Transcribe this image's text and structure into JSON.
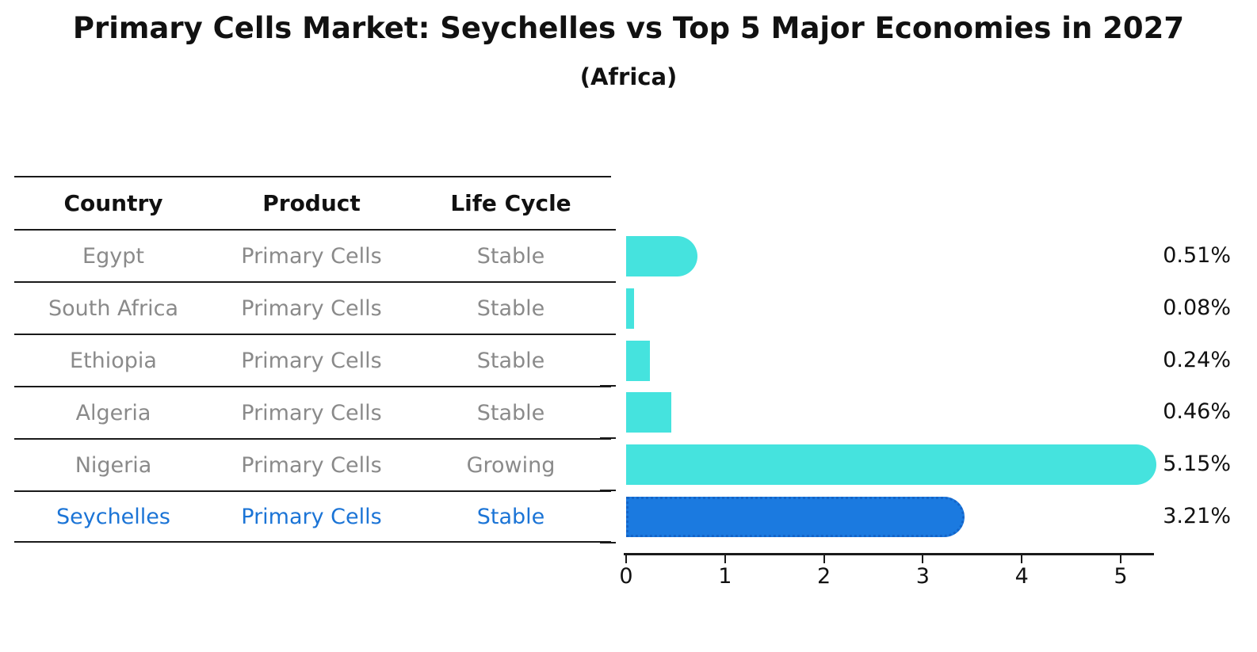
{
  "title": "Primary Cells Market: Seychelles vs Top 5 Major Economies in 2027",
  "subtitle": "(Africa)",
  "table": {
    "headers": {
      "country": "Country",
      "product": "Product",
      "life_cycle": "Life Cycle"
    },
    "rows": [
      {
        "country": "Egypt",
        "product": "Primary Cells",
        "life_cycle": "Stable",
        "highlighted": false
      },
      {
        "country": "South Africa",
        "product": "Primary Cells",
        "life_cycle": "Stable",
        "highlighted": false
      },
      {
        "country": "Ethiopia",
        "product": "Primary Cells",
        "life_cycle": "Stable",
        "highlighted": false
      },
      {
        "country": "Algeria",
        "product": "Primary Cells",
        "life_cycle": "Stable",
        "highlighted": false
      },
      {
        "country": "Nigeria",
        "product": "Primary Cells",
        "life_cycle": "Growing",
        "highlighted": false
      },
      {
        "country": "Seychelles",
        "product": "Primary Cells",
        "life_cycle": "Stable",
        "highlighted": true
      }
    ]
  },
  "chart_data": {
    "type": "bar",
    "orientation": "horizontal",
    "title": "Primary Cells Market: Seychelles vs Top 5 Major Economies in 2027",
    "subtitle": "(Africa)",
    "categories": [
      "Egypt",
      "South Africa",
      "Ethiopia",
      "Algeria",
      "Nigeria",
      "Seychelles"
    ],
    "values": [
      0.51,
      0.08,
      0.24,
      0.46,
      5.15,
      3.21
    ],
    "value_labels": [
      "0.51%",
      "0.08%",
      "0.24%",
      "0.46%",
      "5.15%",
      "3.21%"
    ],
    "xlabel": "",
    "ylabel": "",
    "xlim": [
      0,
      5.35
    ],
    "x_ticks": [
      "0",
      "1",
      "2",
      "3",
      "4",
      "5"
    ],
    "grid": false,
    "legend": null,
    "highlight_index": 5,
    "rounded_caps": [
      true,
      false,
      false,
      false,
      true,
      true
    ],
    "bar_color": "#45E3DE",
    "highlight_bar_color": "#1B7AE0",
    "highlight_border_color": "#1464C8"
  },
  "colors": {
    "background": "#FFFFFF",
    "bar_cyan": "#45E3DE",
    "bar_blue": "#1B7AE0",
    "highlight_text": "#1B74D6",
    "table_text": "#8A8A8A",
    "heading_text": "#111111",
    "axis": "#1A1A1A"
  }
}
